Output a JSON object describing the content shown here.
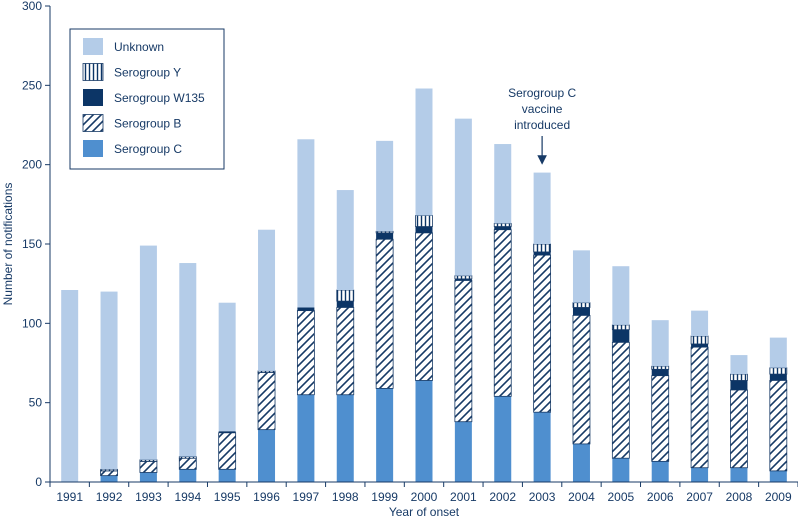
{
  "chart_data": {
    "type": "bar",
    "stacked": true,
    "title": "",
    "xlabel": "Year of onset",
    "ylabel": "Number of notifications",
    "ylim": [
      0,
      300
    ],
    "yticks": [
      0,
      50,
      100,
      150,
      200,
      250,
      300
    ],
    "grid": false,
    "legend_position": "top-left",
    "categories": [
      "1991",
      "1992",
      "1993",
      "1994",
      "1995",
      "1996",
      "1997",
      "1998",
      "1999",
      "2000",
      "2001",
      "2002",
      "2003",
      "2004",
      "2005",
      "2006",
      "2007",
      "2008",
      "2009"
    ],
    "series": [
      {
        "name": "Serogroup C",
        "pattern": "solid",
        "color": "#4f8fcf",
        "values": [
          0,
          4,
          6,
          8,
          8,
          33,
          55,
          55,
          59,
          64,
          38,
          54,
          44,
          24,
          15,
          13,
          9,
          9,
          7
        ]
      },
      {
        "name": "Serogroup B",
        "pattern": "hatch",
        "color": "#173a66",
        "values": [
          0,
          3,
          7,
          7,
          23,
          36,
          53,
          55,
          94,
          93,
          89,
          105,
          99,
          81,
          73,
          54,
          76,
          49,
          57
        ]
      },
      {
        "name": "Serogroup W135",
        "pattern": "solid",
        "color": "#0c3566",
        "values": [
          0,
          0,
          0,
          0,
          1,
          0,
          2,
          4,
          4,
          4,
          1,
          2,
          2,
          5,
          8,
          4,
          2,
          6,
          4
        ]
      },
      {
        "name": "Serogroup Y",
        "pattern": "vertical-lines",
        "color": "#0c3566",
        "values": [
          0,
          1,
          1,
          1,
          0,
          1,
          0,
          7,
          1,
          7,
          2,
          2,
          5,
          3,
          3,
          2,
          5,
          4,
          4
        ]
      },
      {
        "name": "Unknown",
        "pattern": "solid",
        "color": "#b4cce8",
        "values": [
          121,
          112,
          135,
          122,
          81,
          89,
          106,
          63,
          57,
          80,
          99,
          50,
          45,
          33,
          37,
          29,
          16,
          12,
          19
        ]
      }
    ],
    "legend_order": [
      "Unknown",
      "Serogroup Y",
      "Serogroup W135",
      "Serogroup B",
      "Serogroup C"
    ],
    "annotation": {
      "lines": [
        "Serogroup C",
        "vaccine",
        "introduced"
      ],
      "category": "2003"
    }
  }
}
